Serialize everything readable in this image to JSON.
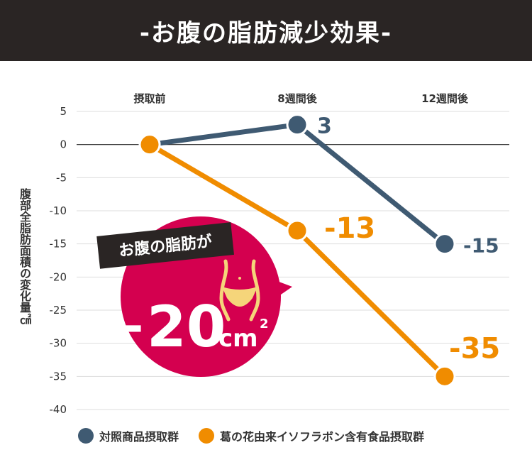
{
  "header": {
    "title": "-お腹の脂肪減少効果-"
  },
  "chart_data": {
    "type": "line",
    "title": "-お腹の脂肪減少効果-",
    "xlabel": "",
    "ylabel": "腹部全脂肪面積の変化量㎠",
    "categories": [
      "摂取前",
      "8週間後",
      "12週間後"
    ],
    "ylim": [
      -40,
      5
    ],
    "yticks": [
      5,
      0,
      -5,
      -10,
      -15,
      -20,
      -25,
      -30,
      -35,
      -40
    ],
    "series": [
      {
        "name": "対照商品摂取群",
        "color": "#3f5a72",
        "values": [
          0,
          3,
          -15
        ],
        "labels": [
          "",
          "3",
          "-15"
        ]
      },
      {
        "name": "葛の花由来イソフラボン含有食品摂取群",
        "color": "#f08c00",
        "values": [
          0,
          -13,
          -35
        ],
        "labels": [
          "",
          "-13",
          "-35"
        ]
      }
    ],
    "legend_position": "bottom",
    "annotation": {
      "caption": "お腹の脂肪が",
      "value": "−20",
      "unit": "cm",
      "superscript": "2",
      "icon": "waist-icon",
      "color": "#d4004f"
    }
  }
}
